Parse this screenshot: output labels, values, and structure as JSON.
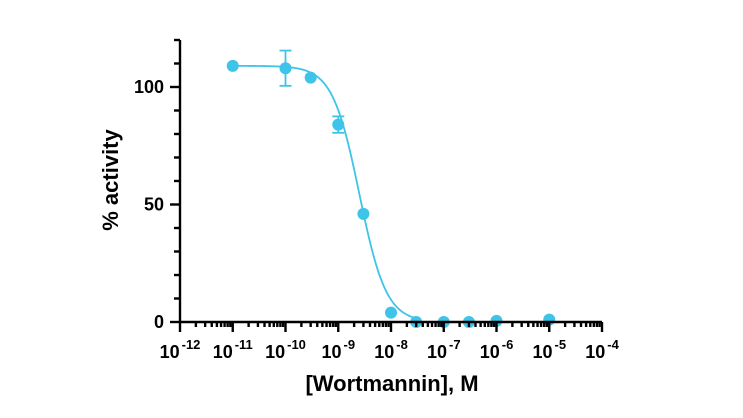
{
  "chart_data": {
    "type": "scatter",
    "title": "",
    "xlabel": "[Wortmannin], M",
    "ylabel": "% activity",
    "x_scale": "log",
    "x_ticks": [
      {
        "value": 1e-12,
        "base": "10",
        "exp": "-12"
      },
      {
        "value": 1e-11,
        "base": "10",
        "exp": "-11"
      },
      {
        "value": 1e-10,
        "base": "10",
        "exp": "-10"
      },
      {
        "value": 1e-09,
        "base": "10",
        "exp": "-9"
      },
      {
        "value": 1e-08,
        "base": "10",
        "exp": "-8"
      },
      {
        "value": 1e-07,
        "base": "10",
        "exp": "-7"
      },
      {
        "value": 1e-06,
        "base": "10",
        "exp": "-6"
      },
      {
        "value": 1e-05,
        "base": "10",
        "exp": "-5"
      },
      {
        "value": 0.0001,
        "base": "10",
        "exp": "-4"
      }
    ],
    "xlim": [
      1e-12,
      0.0001
    ],
    "y_ticks": [
      0,
      50,
      100
    ],
    "ylim": [
      0,
      120
    ],
    "grid": false,
    "color": "#3EC4E8",
    "series": [
      {
        "points": [
          {
            "x": 1e-11,
            "y": 109,
            "err": 0
          },
          {
            "x": 1e-10,
            "y": 108,
            "err": 7.5
          },
          {
            "x": 3e-10,
            "y": 104,
            "err": 0
          },
          {
            "x": 1e-09,
            "y": 84,
            "err": 3.5
          },
          {
            "x": 3e-09,
            "y": 46,
            "err": 0
          },
          {
            "x": 1e-08,
            "y": 4,
            "err": 0
          },
          {
            "x": 3e-08,
            "y": 0,
            "err": 0
          },
          {
            "x": 1e-07,
            "y": 0,
            "err": 0
          },
          {
            "x": 3e-07,
            "y": 0,
            "err": 0
          },
          {
            "x": 1e-06,
            "y": 0.5,
            "err": 0
          },
          {
            "x": 1e-05,
            "y": 1,
            "err": 0
          }
        ],
        "fit": {
          "model": "four-parameter logistic",
          "top": 109,
          "bottom": 0,
          "log_ec50": -8.6,
          "hill": 1.7
        }
      }
    ]
  }
}
